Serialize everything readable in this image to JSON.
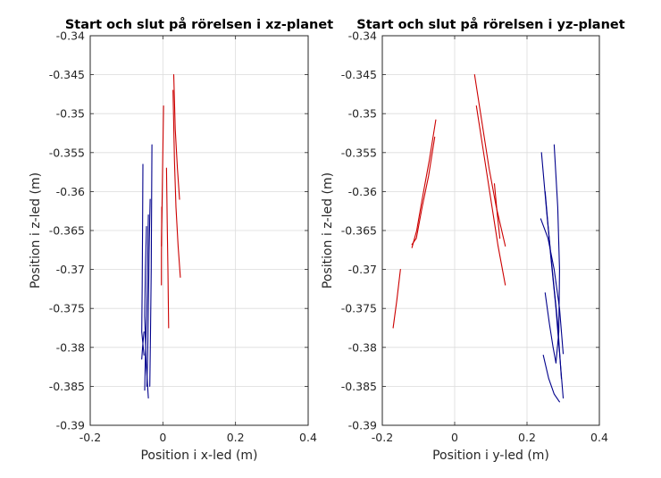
{
  "chart_data": [
    {
      "type": "line",
      "title": "Start och slut på rörelsen i xz-planet",
      "xlabel": "Position i x-led (m)",
      "ylabel": "Position i z-led (m)",
      "xlim": [
        -0.2,
        0.4
      ],
      "ylim": [
        -0.39,
        -0.34
      ],
      "xticks": [
        "-0.2",
        "0",
        "0.2",
        "0.4"
      ],
      "yticks": [
        "-0.34",
        "-0.345",
        "-0.35",
        "-0.355",
        "-0.36",
        "-0.365",
        "-0.37",
        "-0.375",
        "-0.38",
        "-0.385",
        "-0.39"
      ],
      "grid": true,
      "colors": {
        "red": "#cc0000",
        "blue": "#00008b"
      },
      "series": [
        {
          "color": "red",
          "points": [
            [
              0.03,
              -0.345
            ],
            [
              0.034,
              -0.352
            ],
            [
              0.04,
              -0.357
            ],
            [
              0.046,
              -0.361
            ]
          ]
        },
        {
          "color": "red",
          "points": [
            [
              0.028,
              -0.347
            ],
            [
              0.032,
              -0.356
            ],
            [
              0.036,
              -0.362
            ],
            [
              0.042,
              -0.367
            ],
            [
              0.048,
              -0.371
            ]
          ]
        },
        {
          "color": "red",
          "points": [
            [
              0.002,
              -0.349
            ],
            [
              0.0,
              -0.355
            ],
            [
              -0.002,
              -0.361
            ],
            [
              -0.004,
              -0.367
            ]
          ]
        },
        {
          "color": "red",
          "points": [
            [
              0.01,
              -0.357
            ],
            [
              0.012,
              -0.364
            ],
            [
              0.014,
              -0.37
            ],
            [
              0.016,
              -0.3775
            ]
          ]
        },
        {
          "color": "red",
          "points": [
            [
              -0.003,
              -0.362
            ],
            [
              -0.004,
              -0.368
            ],
            [
              -0.004,
              -0.372
            ]
          ]
        },
        {
          "color": "blue",
          "points": [
            [
              -0.055,
              -0.3565
            ],
            [
              -0.056,
              -0.365
            ],
            [
              -0.057,
              -0.372
            ],
            [
              -0.058,
              -0.378
            ],
            [
              -0.052,
              -0.381
            ]
          ]
        },
        {
          "color": "blue",
          "points": [
            [
              -0.035,
              -0.361
            ],
            [
              -0.038,
              -0.368
            ],
            [
              -0.04,
              -0.375
            ],
            [
              -0.042,
              -0.381
            ],
            [
              -0.044,
              -0.385
            ]
          ]
        },
        {
          "color": "blue",
          "points": [
            [
              -0.045,
              -0.3645
            ],
            [
              -0.048,
              -0.37
            ],
            [
              -0.05,
              -0.376
            ],
            [
              -0.046,
              -0.382
            ],
            [
              -0.04,
              -0.3865
            ]
          ]
        },
        {
          "color": "blue",
          "points": [
            [
              -0.04,
              -0.363
            ],
            [
              -0.042,
              -0.369
            ],
            [
              -0.044,
              -0.375
            ],
            [
              -0.048,
              -0.381
            ],
            [
              -0.05,
              -0.3855
            ]
          ]
        },
        {
          "color": "blue",
          "points": [
            [
              -0.052,
              -0.378
            ],
            [
              -0.056,
              -0.38
            ],
            [
              -0.058,
              -0.3815
            ]
          ]
        },
        {
          "color": "blue",
          "points": [
            [
              -0.03,
              -0.354
            ],
            [
              -0.031,
              -0.362
            ],
            [
              -0.032,
              -0.37
            ],
            [
              -0.034,
              -0.378
            ],
            [
              -0.036,
              -0.385
            ]
          ]
        }
      ]
    },
    {
      "type": "line",
      "title": "Start och slut på rörelsen i yz-planet",
      "xlabel": "Position i y-led (m)",
      "ylabel": "Position i z-led (m)",
      "xlim": [
        -0.2,
        0.4
      ],
      "ylim": [
        -0.39,
        -0.34
      ],
      "xticks": [
        "-0.2",
        "0",
        "0.2",
        "0.4"
      ],
      "yticks": [
        "-0.34",
        "-0.345",
        "-0.35",
        "-0.355",
        "-0.36",
        "-0.365",
        "-0.37",
        "-0.375",
        "-0.38",
        "-0.385",
        "-0.39"
      ],
      "grid": true,
      "colors": {
        "red": "#cc0000",
        "blue": "#00008b"
      },
      "series": [
        {
          "color": "red",
          "points": [
            [
              -0.052,
              -0.3508
            ],
            [
              -0.07,
              -0.356
            ],
            [
              -0.09,
              -0.361
            ],
            [
              -0.105,
              -0.365
            ],
            [
              -0.118,
              -0.3672
            ]
          ]
        },
        {
          "color": "red",
          "points": [
            [
              -0.055,
              -0.353
            ],
            [
              -0.072,
              -0.358
            ],
            [
              -0.09,
              -0.362
            ],
            [
              -0.106,
              -0.366
            ],
            [
              -0.118,
              -0.3668
            ]
          ]
        },
        {
          "color": "red",
          "points": [
            [
              -0.15,
              -0.37
            ],
            [
              -0.16,
              -0.374
            ],
            [
              -0.17,
              -0.3775
            ]
          ]
        },
        {
          "color": "red",
          "points": [
            [
              0.055,
              -0.345
            ],
            [
              0.075,
              -0.351
            ],
            [
              0.095,
              -0.357
            ],
            [
              0.115,
              -0.362
            ],
            [
              0.14,
              -0.367
            ]
          ]
        },
        {
          "color": "red",
          "points": [
            [
              0.06,
              -0.349
            ],
            [
              0.08,
              -0.355
            ],
            [
              0.1,
              -0.361
            ],
            [
              0.12,
              -0.367
            ],
            [
              0.14,
              -0.372
            ]
          ]
        },
        {
          "color": "red",
          "points": [
            [
              0.11,
              -0.359
            ],
            [
              0.118,
              -0.363
            ],
            [
              0.125,
              -0.366
            ]
          ]
        },
        {
          "color": "blue",
          "points": [
            [
              0.24,
              -0.355
            ],
            [
              0.255,
              -0.363
            ],
            [
              0.27,
              -0.37
            ],
            [
              0.285,
              -0.377
            ],
            [
              0.295,
              -0.384
            ]
          ]
        },
        {
          "color": "blue",
          "points": [
            [
              0.25,
              -0.36
            ],
            [
              0.265,
              -0.368
            ],
            [
              0.28,
              -0.375
            ],
            [
              0.292,
              -0.382
            ],
            [
              0.3,
              -0.3865
            ]
          ]
        },
        {
          "color": "blue",
          "points": [
            [
              0.238,
              -0.3635
            ],
            [
              0.258,
              -0.366
            ],
            [
              0.275,
              -0.37
            ],
            [
              0.29,
              -0.375
            ],
            [
              0.3,
              -0.3808
            ]
          ]
        },
        {
          "color": "blue",
          "points": [
            [
              0.275,
              -0.354
            ],
            [
              0.285,
              -0.362
            ],
            [
              0.29,
              -0.37
            ],
            [
              0.288,
              -0.378
            ],
            [
              0.28,
              -0.382
            ]
          ]
        },
        {
          "color": "blue",
          "points": [
            [
              0.245,
              -0.381
            ],
            [
              0.26,
              -0.384
            ],
            [
              0.275,
              -0.386
            ],
            [
              0.29,
              -0.387
            ]
          ]
        },
        {
          "color": "blue",
          "points": [
            [
              0.25,
              -0.373
            ],
            [
              0.262,
              -0.377
            ],
            [
              0.272,
              -0.38
            ],
            [
              0.28,
              -0.382
            ]
          ]
        }
      ]
    }
  ]
}
